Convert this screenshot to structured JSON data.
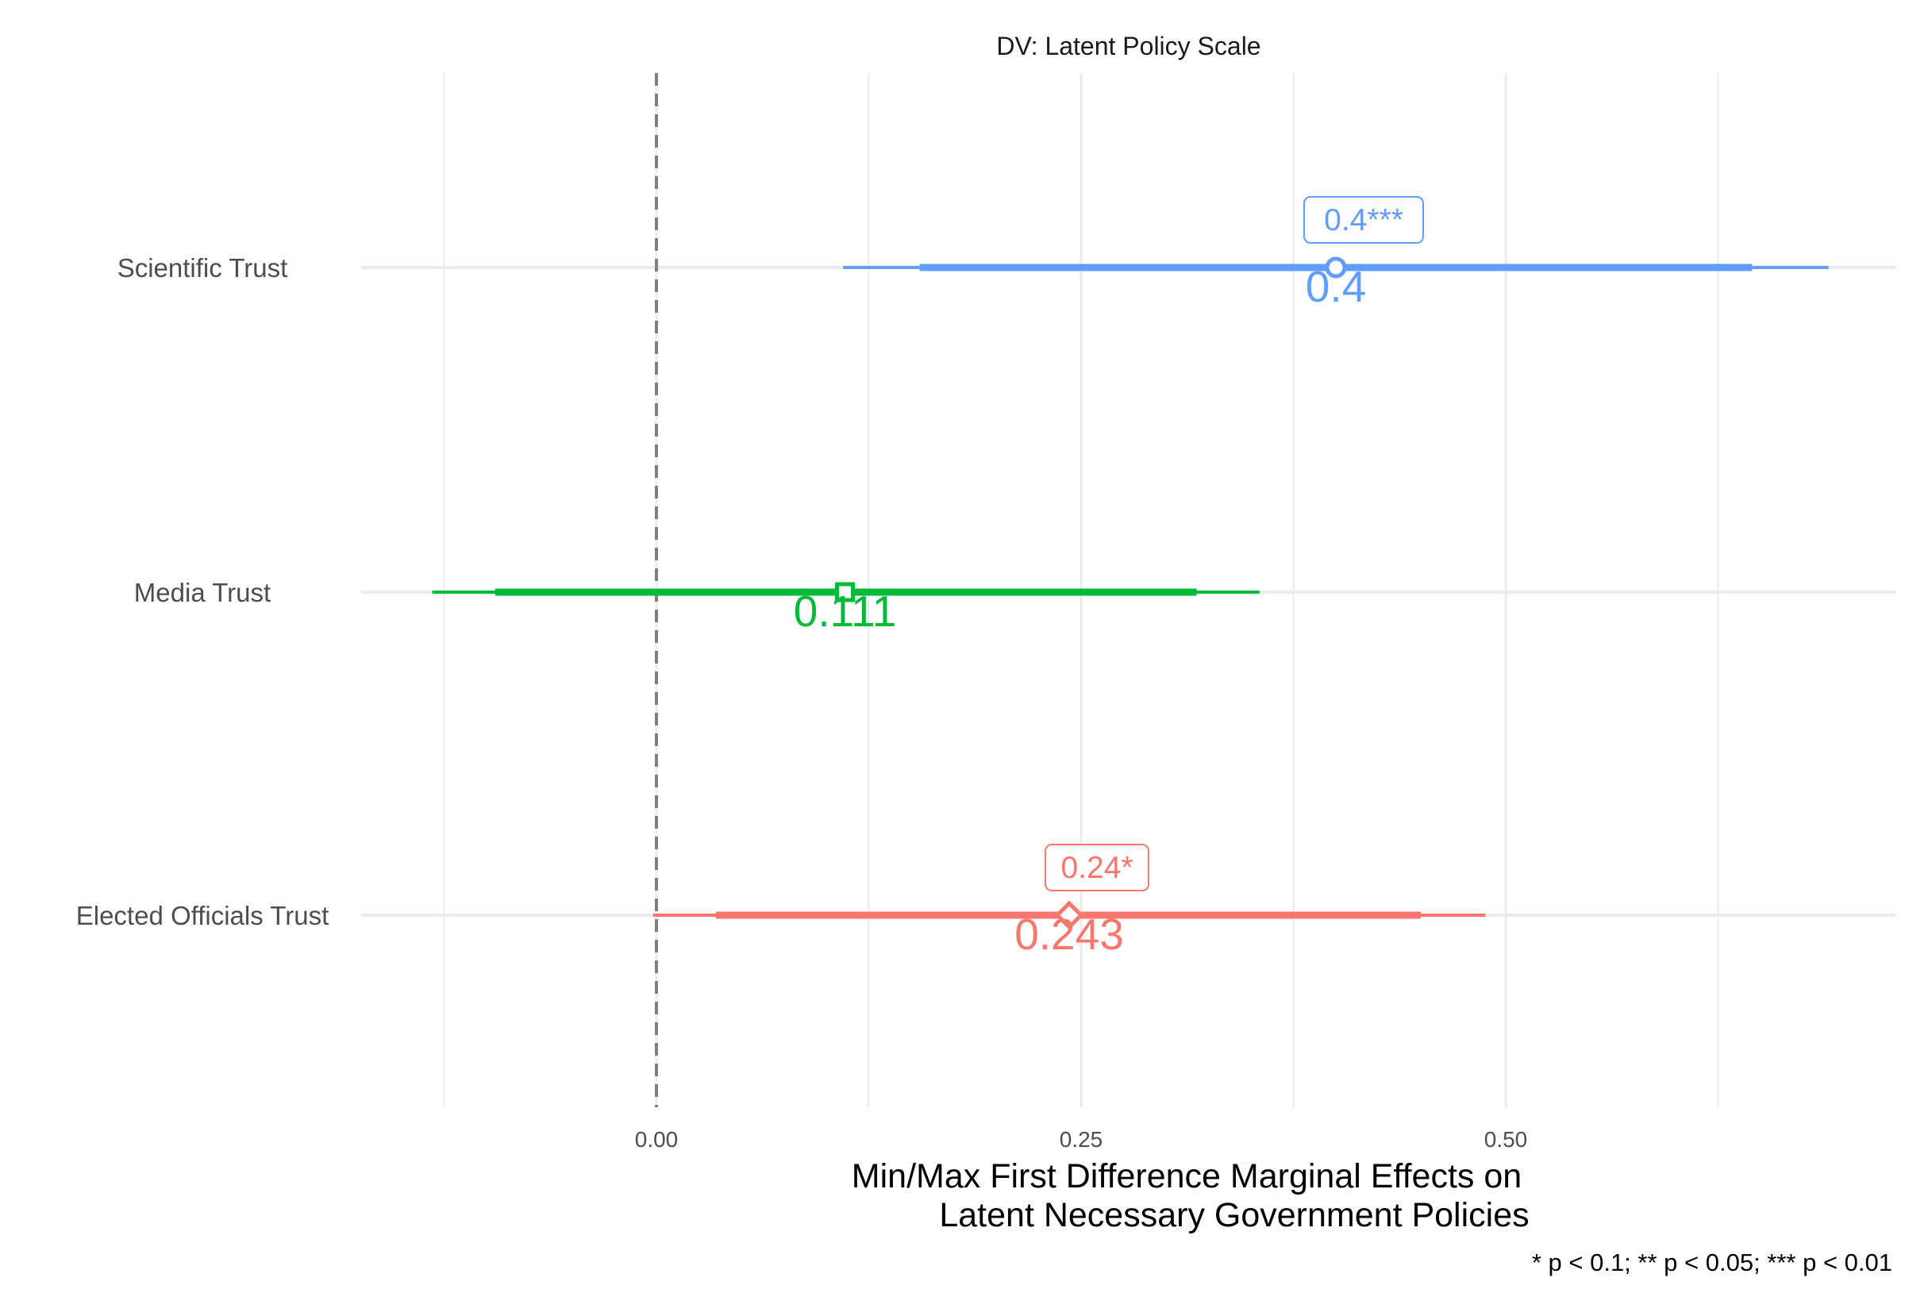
{
  "chart_data": {
    "type": "coefficient-plot",
    "title": "DV: Latent Policy Scale",
    "xlabel_line1": "Min/Max First Difference Marginal Effects on",
    "xlabel_line2": "Latent Necessary Government Policies",
    "caption": "* p < 0.1; ** p < 0.05; *** p < 0.01",
    "xlim": [
      -0.175,
      0.73
    ],
    "x_ticks": [
      {
        "value": 0.0,
        "label": "0.00"
      },
      {
        "value": 0.25,
        "label": "0.25"
      },
      {
        "value": 0.5,
        "label": "0.50"
      }
    ],
    "minor_gridlines": [
      -0.125,
      0.125,
      0.375,
      0.625
    ],
    "reference_line": 0.0,
    "grid": true,
    "series": [
      {
        "category": "Scientific Trust",
        "estimate": 0.4,
        "value_label": "0.4",
        "box_label": "0.4***",
        "ci_inner": [
          0.155,
          0.645
        ],
        "ci_outer": [
          0.11,
          0.69
        ],
        "shape": "circle",
        "color": "#619CFF"
      },
      {
        "category": "Media Trust",
        "estimate": 0.111,
        "value_label": "0.111",
        "box_label": "",
        "ci_inner": [
          -0.095,
          0.318
        ],
        "ci_outer": [
          -0.132,
          0.355
        ],
        "shape": "square",
        "color": "#00BA38"
      },
      {
        "category": "Elected Officials Trust",
        "estimate": 0.243,
        "value_label": "0.243",
        "box_label": "0.24*",
        "ci_inner": [
          0.035,
          0.45
        ],
        "ci_outer": [
          -0.002,
          0.488
        ],
        "shape": "diamond",
        "color": "#F8766D"
      }
    ]
  }
}
